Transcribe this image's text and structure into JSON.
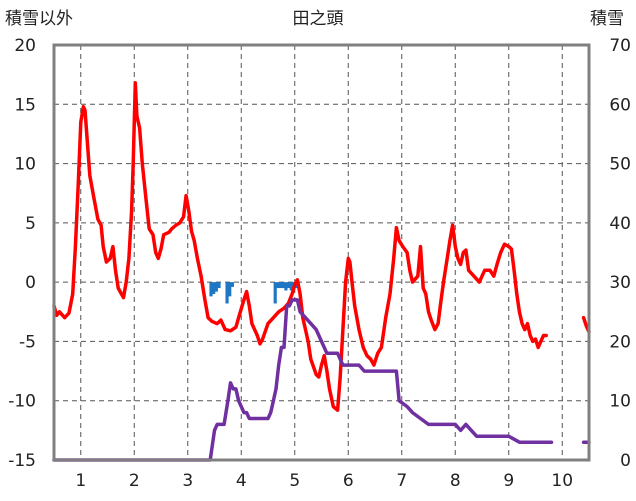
{
  "chart_data": {
    "type": "line",
    "title": "田之頭",
    "left_axis_title": "積雪以外",
    "right_axis_title": "積雪",
    "x_range": [
      0.5,
      10.5
    ],
    "y_left_range": [
      -15,
      20
    ],
    "y_right_range": [
      0,
      70
    ],
    "x_ticks": [
      "1",
      "2",
      "3",
      "4",
      "5",
      "6",
      "7",
      "8",
      "9",
      "10"
    ],
    "y_left_ticks": [
      "-15",
      "-10",
      "-5",
      "0",
      "5",
      "10",
      "15",
      "20"
    ],
    "y_right_ticks": [
      "0",
      "10",
      "20",
      "30",
      "40",
      "50",
      "60",
      "70"
    ],
    "grid": "dashed",
    "colors": {
      "temperature": "#ff0000",
      "snow_depth": "#7030a0",
      "precipitation": "#1f77c4",
      "axes": "#808080",
      "grid": "#555555"
    },
    "series": [
      {
        "axis": "left",
        "segments": [
          [
            [
              0.5,
              -2
            ],
            [
              0.55,
              -2.8
            ],
            [
              0.6,
              -2.5
            ],
            [
              0.7,
              -3
            ],
            [
              0.78,
              -2.6
            ],
            [
              0.85,
              -1
            ],
            [
              0.9,
              3
            ],
            [
              0.95,
              8
            ],
            [
              1.0,
              13.5
            ],
            [
              1.05,
              14.8
            ],
            [
              1.08,
              14.5
            ],
            [
              1.12,
              12
            ],
            [
              1.17,
              9
            ],
            [
              1.25,
              7
            ],
            [
              1.32,
              5.3
            ],
            [
              1.38,
              4.8
            ],
            [
              1.42,
              3
            ],
            [
              1.48,
              1.7
            ],
            [
              1.55,
              2
            ],
            [
              1.6,
              3
            ],
            [
              1.65,
              1
            ],
            [
              1.7,
              -0.5
            ],
            [
              1.8,
              -1.3
            ],
            [
              1.85,
              0
            ],
            [
              1.9,
              2
            ],
            [
              1.95,
              6
            ],
            [
              1.98,
              10
            ],
            [
              2.02,
              16.8
            ],
            [
              2.05,
              14
            ],
            [
              2.1,
              13
            ],
            [
              2.15,
              10
            ],
            [
              2.22,
              7
            ],
            [
              2.28,
              4.5
            ],
            [
              2.35,
              4
            ],
            [
              2.4,
              2.5
            ],
            [
              2.45,
              2
            ],
            [
              2.5,
              2.8
            ],
            [
              2.55,
              4
            ],
            [
              2.65,
              4.2
            ],
            [
              2.7,
              4.5
            ],
            [
              2.78,
              4.8
            ],
            [
              2.85,
              5
            ],
            [
              2.92,
              5.5
            ],
            [
              2.97,
              7.3
            ],
            [
              3.02,
              6
            ],
            [
              3.07,
              4.3
            ],
            [
              3.12,
              3.5
            ],
            [
              3.18,
              2
            ],
            [
              3.25,
              0.5
            ],
            [
              3.32,
              -1.5
            ],
            [
              3.38,
              -3
            ],
            [
              3.45,
              -3.3
            ],
            [
              3.55,
              -3.5
            ],
            [
              3.62,
              -3.2
            ],
            [
              3.7,
              -4
            ],
            [
              3.8,
              -4.1
            ],
            [
              3.9,
              -3.8
            ],
            [
              3.95,
              -3
            ],
            [
              4.05,
              -1.5
            ],
            [
              4.1,
              -0.8
            ],
            [
              4.15,
              -2
            ],
            [
              4.2,
              -3.5
            ],
            [
              4.3,
              -4.5
            ],
            [
              4.35,
              -5.2
            ],
            [
              4.4,
              -4.8
            ],
            [
              4.5,
              -3.5
            ],
            [
              4.6,
              -3
            ],
            [
              4.7,
              -2.5
            ],
            [
              4.8,
              -2.2
            ],
            [
              4.88,
              -1.8
            ],
            [
              4.95,
              -1
            ],
            [
              5.0,
              -0.2
            ],
            [
              5.05,
              0.2
            ],
            [
              5.1,
              -1
            ],
            [
              5.15,
              -3
            ],
            [
              5.2,
              -4
            ],
            [
              5.25,
              -5
            ],
            [
              5.3,
              -6.5
            ],
            [
              5.4,
              -7.8
            ],
            [
              5.45,
              -8
            ],
            [
              5.5,
              -7
            ],
            [
              5.55,
              -6.2
            ],
            [
              5.6,
              -7.5
            ],
            [
              5.65,
              -9
            ],
            [
              5.72,
              -10.5
            ],
            [
              5.8,
              -10.8
            ],
            [
              5.85,
              -8
            ],
            [
              5.9,
              -4
            ],
            [
              5.95,
              0
            ],
            [
              6.0,
              2
            ],
            [
              6.03,
              1.7
            ],
            [
              6.07,
              0
            ],
            [
              6.12,
              -2
            ],
            [
              6.2,
              -4
            ],
            [
              6.28,
              -5.5
            ],
            [
              6.35,
              -6.2
            ],
            [
              6.42,
              -6.5
            ],
            [
              6.48,
              -7
            ],
            [
              6.55,
              -6
            ],
            [
              6.62,
              -5.5
            ],
            [
              6.7,
              -3
            ],
            [
              6.78,
              -1
            ],
            [
              6.85,
              2
            ],
            [
              6.9,
              4.6
            ],
            [
              6.95,
              3.5
            ],
            [
              7.02,
              3
            ],
            [
              7.1,
              2.5
            ],
            [
              7.15,
              1
            ],
            [
              7.2,
              0
            ],
            [
              7.3,
              0.5
            ],
            [
              7.35,
              3
            ],
            [
              7.4,
              -0.5
            ],
            [
              7.45,
              -1
            ],
            [
              7.5,
              -2.5
            ],
            [
              7.55,
              -3.2
            ],
            [
              7.62,
              -4
            ],
            [
              7.68,
              -3.5
            ],
            [
              7.72,
              -2
            ],
            [
              7.78,
              0
            ],
            [
              7.85,
              2
            ],
            [
              7.9,
              3.5
            ],
            [
              7.95,
              4.8
            ],
            [
              8.0,
              3
            ],
            [
              8.05,
              2
            ],
            [
              8.1,
              1.5
            ],
            [
              8.15,
              2.5
            ],
            [
              8.2,
              2.7
            ],
            [
              8.25,
              1
            ],
            [
              8.35,
              0.5
            ],
            [
              8.45,
              0
            ],
            [
              8.5,
              0.5
            ],
            [
              8.55,
              1
            ],
            [
              8.65,
              1
            ],
            [
              8.72,
              0.5
            ],
            [
              8.78,
              1.5
            ],
            [
              8.85,
              2.5
            ],
            [
              8.92,
              3.2
            ],
            [
              9.0,
              3
            ],
            [
              9.05,
              2.8
            ],
            [
              9.1,
              1
            ],
            [
              9.15,
              -1
            ],
            [
              9.2,
              -2.5
            ],
            [
              9.25,
              -3.5
            ],
            [
              9.3,
              -4
            ],
            [
              9.35,
              -3.5
            ],
            [
              9.4,
              -4.5
            ],
            [
              9.45,
              -5
            ],
            [
              9.5,
              -4.8
            ],
            [
              9.55,
              -5.5
            ],
            [
              9.6,
              -5
            ],
            [
              9.65,
              -4.5
            ],
            [
              9.7,
              -4.5
            ]
          ],
          [
            [
              10.4,
              -3
            ],
            [
              10.45,
              -3.7
            ],
            [
              10.5,
              -4.2
            ]
          ]
        ]
      },
      {
        "axis": "right",
        "segments": [
          [
            [
              0.5,
              0
            ],
            [
              3.42,
              0
            ],
            [
              3.5,
              5
            ],
            [
              3.55,
              6
            ],
            [
              3.68,
              6
            ],
            [
              3.75,
              10
            ],
            [
              3.8,
              13
            ],
            [
              3.85,
              12
            ],
            [
              3.9,
              12
            ],
            [
              3.95,
              10
            ],
            [
              4.0,
              9
            ],
            [
              4.05,
              8
            ],
            [
              4.1,
              8
            ],
            [
              4.15,
              7
            ],
            [
              4.4,
              7
            ],
            [
              4.5,
              7
            ],
            [
              4.55,
              8
            ],
            [
              4.6,
              10
            ],
            [
              4.65,
              12
            ],
            [
              4.7,
              16
            ],
            [
              4.75,
              19
            ],
            [
              4.8,
              19
            ],
            [
              4.85,
              26
            ],
            [
              4.9,
              26
            ],
            [
              4.95,
              27
            ],
            [
              5.0,
              27
            ],
            [
              5.05,
              27
            ],
            [
              5.1,
              25
            ],
            [
              5.2,
              24
            ],
            [
              5.3,
              23
            ],
            [
              5.4,
              22
            ],
            [
              5.5,
              20
            ],
            [
              5.6,
              18
            ],
            [
              5.8,
              18
            ],
            [
              5.9,
              16
            ],
            [
              6.0,
              16
            ],
            [
              6.2,
              16
            ],
            [
              6.3,
              15
            ],
            [
              6.9,
              15
            ],
            [
              6.95,
              10
            ],
            [
              7.1,
              9
            ],
            [
              7.2,
              8
            ],
            [
              7.5,
              6
            ],
            [
              8.0,
              6
            ],
            [
              8.1,
              5
            ],
            [
              8.2,
              6
            ],
            [
              8.3,
              5
            ],
            [
              8.4,
              4
            ],
            [
              9.0,
              4
            ],
            [
              9.2,
              3
            ],
            [
              9.8,
              3
            ]
          ],
          [
            [
              10.4,
              3
            ],
            [
              10.5,
              3
            ]
          ]
        ]
      }
    ],
    "bars": [
      {
        "x": 3.43,
        "value": 1.2
      },
      {
        "x": 3.48,
        "value": 1.0
      },
      {
        "x": 3.53,
        "value": 0.8
      },
      {
        "x": 3.58,
        "value": 0.5
      },
      {
        "x": 3.73,
        "value": 1.8
      },
      {
        "x": 3.78,
        "value": 1.2
      },
      {
        "x": 3.83,
        "value": 0.4
      },
      {
        "x": 4.63,
        "value": 1.8
      },
      {
        "x": 4.68,
        "value": 0.5
      },
      {
        "x": 4.73,
        "value": 0.5
      },
      {
        "x": 4.78,
        "value": 0.5
      },
      {
        "x": 4.83,
        "value": 0.7
      },
      {
        "x": 4.88,
        "value": 0.5
      },
      {
        "x": 4.93,
        "value": 0.7
      },
      {
        "x": 4.98,
        "value": 0.5
      },
      {
        "x": 5.03,
        "value": 0.5
      }
    ]
  }
}
